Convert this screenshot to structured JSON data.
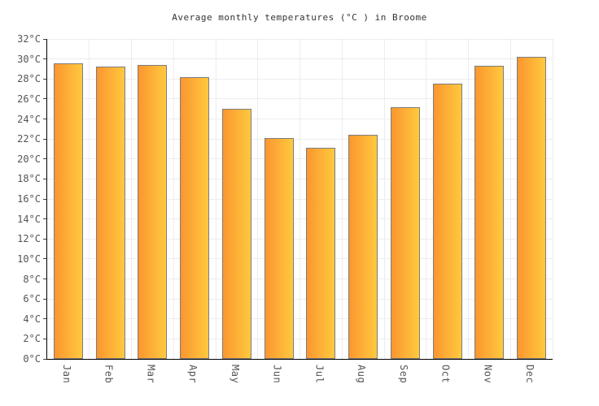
{
  "chart_data": {
    "type": "bar",
    "title": "Average monthly temperatures (°C ) in Broome",
    "unit": "°C",
    "categories": [
      "Jan",
      "Feb",
      "Mar",
      "Apr",
      "May",
      "Jun",
      "Jul",
      "Aug",
      "Sep",
      "Oct",
      "Nov",
      "Dec"
    ],
    "values": [
      29.6,
      29.2,
      29.4,
      28.2,
      25.0,
      22.1,
      21.1,
      22.4,
      25.2,
      27.5,
      29.3,
      30.2
    ],
    "ylim": [
      0,
      32
    ],
    "y_tick_step": 2,
    "y_ticks": [
      {
        "value": 0,
        "label": "0°C"
      },
      {
        "value": 2,
        "label": "2°C"
      },
      {
        "value": 4,
        "label": "4°C"
      },
      {
        "value": 6,
        "label": "6°C"
      },
      {
        "value": 8,
        "label": "8°C"
      },
      {
        "value": 10,
        "label": "10°C"
      },
      {
        "value": 12,
        "label": "12°C"
      },
      {
        "value": 14,
        "label": "14°C"
      },
      {
        "value": 16,
        "label": "16°C"
      },
      {
        "value": 18,
        "label": "18°C"
      },
      {
        "value": 20,
        "label": "20°C"
      },
      {
        "value": 22,
        "label": "22°C"
      },
      {
        "value": 24,
        "label": "24°C"
      },
      {
        "value": 26,
        "label": "26°C"
      },
      {
        "value": 28,
        "label": "28°C"
      },
      {
        "value": 30,
        "label": "30°C"
      },
      {
        "value": 32,
        "label": "32°C"
      }
    ],
    "grid": true,
    "legend": false,
    "colors": {
      "bar_gradient_start": "#FB9630",
      "bar_gradient_end": "#FFC93E",
      "bar_border": "#7d7d7d",
      "gridline": "#ededed",
      "axis": "#000000",
      "tick_label": "#555555",
      "title": "#333333",
      "background": "#ffffff"
    }
  }
}
